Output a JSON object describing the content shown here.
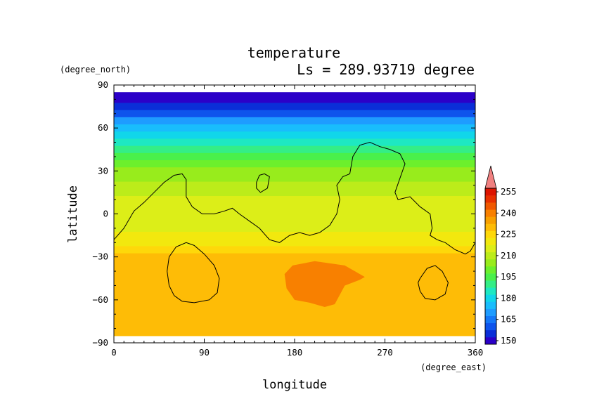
{
  "chart_data": {
    "type": "heatmap",
    "title": "temperature",
    "subtitle": "Ls = 289.93719 degree",
    "xlabel": "longitude",
    "ylabel": "latitude",
    "x_units": "(degree_east)",
    "y_units": "(degree_north)",
    "xlim": [
      0,
      360
    ],
    "ylim": [
      -90,
      90
    ],
    "x_ticks": [
      "0",
      "90",
      "180",
      "270",
      "360"
    ],
    "y_ticks": [
      "90",
      "60",
      "30",
      "0",
      "−30",
      "−60",
      "−90"
    ],
    "colorbar_ticks": [
      "255",
      "240",
      "225",
      "210",
      "195",
      "180",
      "165",
      "150"
    ],
    "colorbar_range": [
      145,
      260
    ],
    "colorbar_step": 5,
    "colors": [
      "#2b00c8",
      "#0a2ed8",
      "#0e54ec",
      "#1478f8",
      "#1e9cff",
      "#19bdfc",
      "#11d6ea",
      "#1ee8c2",
      "#34ee86",
      "#4af04a",
      "#6cf02c",
      "#98ec1c",
      "#bcec1a",
      "#dcee18",
      "#f2e80e",
      "#fed80a",
      "#febc06",
      "#f8a000",
      "#f88000",
      "#f05800",
      "#e83000",
      "#dd1400",
      "#f08080"
    ],
    "latitude_profile": [
      {
        "lat": 85,
        "value": 147
      },
      {
        "lat": 80,
        "value": 149
      },
      {
        "lat": 75,
        "value": 153
      },
      {
        "lat": 70,
        "value": 158
      },
      {
        "lat": 65,
        "value": 165
      },
      {
        "lat": 60,
        "value": 172
      },
      {
        "lat": 55,
        "value": 179
      },
      {
        "lat": 50,
        "value": 184
      },
      {
        "lat": 45,
        "value": 188
      },
      {
        "lat": 40,
        "value": 192
      },
      {
        "lat": 35,
        "value": 196
      },
      {
        "lat": 30,
        "value": 200
      },
      {
        "lat": 25,
        "value": 204
      },
      {
        "lat": 20,
        "value": 207
      },
      {
        "lat": 15,
        "value": 209
      },
      {
        "lat": 10,
        "value": 210
      },
      {
        "lat": 5,
        "value": 211
      },
      {
        "lat": 0,
        "value": 212
      },
      {
        "lat": -5,
        "value": 213
      },
      {
        "lat": -10,
        "value": 214
      },
      {
        "lat": -15,
        "value": 215
      },
      {
        "lat": -20,
        "value": 219
      },
      {
        "lat": -25,
        "value": 223
      },
      {
        "lat": -30,
        "value": 225
      },
      {
        "lat": -35,
        "value": 227
      },
      {
        "lat": -40,
        "value": 228
      },
      {
        "lat": -45,
        "value": 229
      },
      {
        "lat": -50,
        "value": 229
      },
      {
        "lat": -55,
        "value": 229
      },
      {
        "lat": -60,
        "value": 229
      },
      {
        "lat": -65,
        "value": 229
      },
      {
        "lat": -70,
        "value": 228
      },
      {
        "lat": -75,
        "value": 228
      },
      {
        "lat": -80,
        "value": 228
      },
      {
        "lat": -85,
        "value": 228
      }
    ],
    "warm_region": {
      "value": 235,
      "points": [
        [
          170,
          -42
        ],
        [
          178,
          -36
        ],
        [
          200,
          -33
        ],
        [
          230,
          -36
        ],
        [
          250,
          -44
        ],
        [
          245,
          -46
        ],
        [
          230,
          -50
        ],
        [
          220,
          -63
        ],
        [
          210,
          -65
        ],
        [
          195,
          -62
        ],
        [
          180,
          -60
        ],
        [
          172,
          -52
        ]
      ]
    },
    "land_contours": [
      [
        [
          0,
          -18
        ],
        [
          10,
          -10
        ],
        [
          20,
          2
        ],
        [
          30,
          8
        ],
        [
          40,
          15
        ],
        [
          50,
          22
        ],
        [
          60,
          27
        ],
        [
          68,
          28
        ],
        [
          72,
          24
        ],
        [
          72,
          12
        ],
        [
          78,
          5
        ],
        [
          88,
          0
        ],
        [
          100,
          0
        ],
        [
          110,
          2
        ],
        [
          118,
          4
        ],
        [
          125,
          0
        ],
        [
          135,
          -5
        ],
        [
          145,
          -10
        ],
        [
          155,
          -18
        ],
        [
          165,
          -20
        ],
        [
          175,
          -15
        ],
        [
          185,
          -13
        ],
        [
          195,
          -15
        ],
        [
          205,
          -13
        ],
        [
          215,
          -8
        ],
        [
          222,
          0
        ],
        [
          225,
          10
        ],
        [
          222,
          20
        ],
        [
          228,
          26
        ],
        [
          235,
          28
        ],
        [
          238,
          40
        ],
        [
          245,
          48
        ],
        [
          255,
          50
        ],
        [
          265,
          47
        ],
        [
          275,
          45
        ],
        [
          285,
          42
        ],
        [
          290,
          35
        ],
        [
          285,
          25
        ],
        [
          280,
          15
        ],
        [
          283,
          10
        ],
        [
          295,
          12
        ],
        [
          305,
          5
        ],
        [
          315,
          0
        ],
        [
          317,
          -10
        ],
        [
          315,
          -15
        ],
        [
          322,
          -18
        ],
        [
          330,
          -20
        ],
        [
          340,
          -25
        ],
        [
          350,
          -28
        ],
        [
          355,
          -26
        ],
        [
          360,
          -20
        ]
      ],
      [
        [
          142,
          22
        ],
        [
          145,
          27
        ],
        [
          150,
          28
        ],
        [
          155,
          26
        ],
        [
          153,
          18
        ],
        [
          146,
          15
        ],
        [
          142,
          18
        ],
        [
          142,
          22
        ]
      ],
      [
        [
          55,
          -30
        ],
        [
          62,
          -23
        ],
        [
          72,
          -20
        ],
        [
          80,
          -22
        ],
        [
          90,
          -28
        ],
        [
          100,
          -36
        ],
        [
          105,
          -45
        ],
        [
          103,
          -55
        ],
        [
          95,
          -60
        ],
        [
          80,
          -62
        ],
        [
          68,
          -61
        ],
        [
          60,
          -57
        ],
        [
          55,
          -50
        ],
        [
          53,
          -40
        ],
        [
          55,
          -30
        ]
      ],
      [
        [
          305,
          -45
        ],
        [
          312,
          -38
        ],
        [
          320,
          -36
        ],
        [
          327,
          -40
        ],
        [
          333,
          -48
        ],
        [
          330,
          -56
        ],
        [
          320,
          -60
        ],
        [
          310,
          -59
        ],
        [
          305,
          -54
        ],
        [
          303,
          -48
        ],
        [
          305,
          -45
        ]
      ]
    ]
  }
}
